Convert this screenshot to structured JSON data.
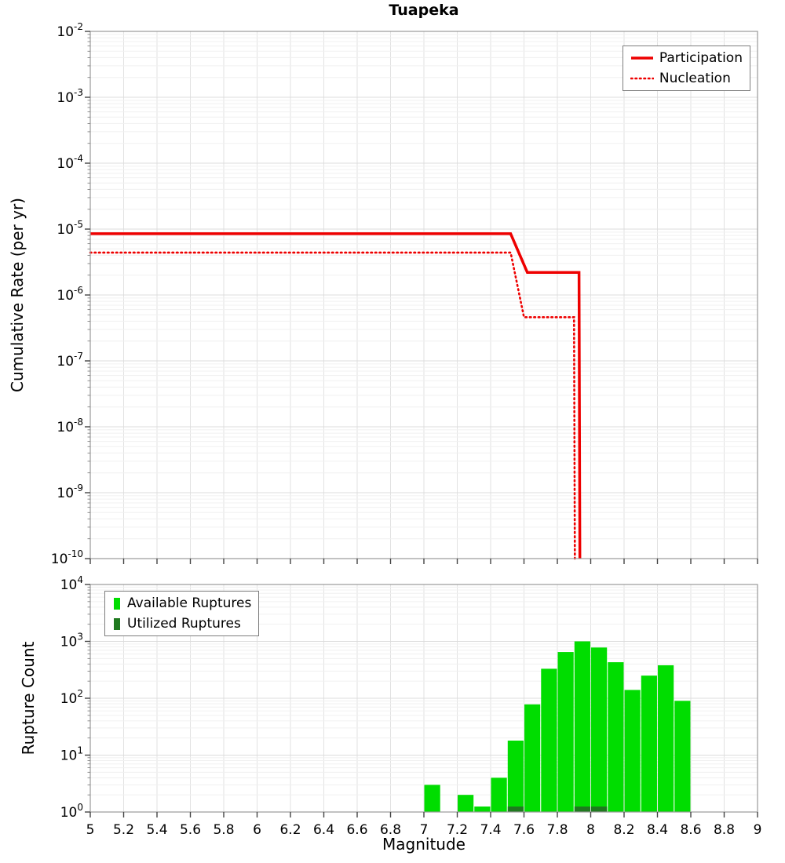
{
  "chart_data": [
    {
      "type": "line",
      "title": "Tuapeka",
      "ylabel": "Cumulative Rate (per yr)",
      "xlim": [
        5,
        9
      ],
      "xtick_step": 0.2,
      "ylog_exp_range": [
        -10,
        -2
      ],
      "grid": true,
      "legend_position": "top-right",
      "series": [
        {
          "name": "Participation",
          "color": "#ee0000",
          "style": "solid",
          "points": [
            [
              5,
              8.5e-06
            ],
            [
              7.52,
              8.5e-06
            ],
            [
              7.62,
              2.2e-06
            ],
            [
              7.93,
              2.2e-06
            ],
            [
              7.935,
              1e-10
            ]
          ]
        },
        {
          "name": "Nucleation",
          "color": "#ee0000",
          "style": "dotted",
          "points": [
            [
              5,
              4.4e-06
            ],
            [
              7.52,
              4.4e-06
            ],
            [
              7.6,
              4.6e-07
            ],
            [
              7.9,
              4.6e-07
            ],
            [
              7.905,
              1e-10
            ]
          ]
        }
      ]
    },
    {
      "type": "bar",
      "ylabel": "Rupture Count",
      "xlabel": "Magnitude",
      "xlim": [
        5,
        9
      ],
      "xtick_step": 0.2,
      "ylog_exp_range": [
        0,
        4
      ],
      "bar_width": 0.095,
      "grid": true,
      "legend_position": "top-left",
      "series": [
        {
          "name": "Available Ruptures",
          "color": "#00dd00",
          "bars": [
            [
              7.05,
              3
            ],
            [
              7.25,
              2
            ],
            [
              7.35,
              1
            ],
            [
              7.45,
              4
            ],
            [
              7.55,
              18
            ],
            [
              7.65,
              78
            ],
            [
              7.75,
              330
            ],
            [
              7.85,
              650
            ],
            [
              7.95,
              1000
            ],
            [
              8.05,
              780
            ],
            [
              8.15,
              430
            ],
            [
              8.25,
              140
            ],
            [
              8.35,
              250
            ],
            [
              8.45,
              380
            ],
            [
              8.55,
              90
            ]
          ]
        },
        {
          "name": "Utilized Ruptures",
          "color": "#1f7a1f",
          "bars": [
            [
              7.55,
              1
            ],
            [
              7.95,
              1
            ],
            [
              8.05,
              1
            ]
          ]
        }
      ]
    }
  ]
}
